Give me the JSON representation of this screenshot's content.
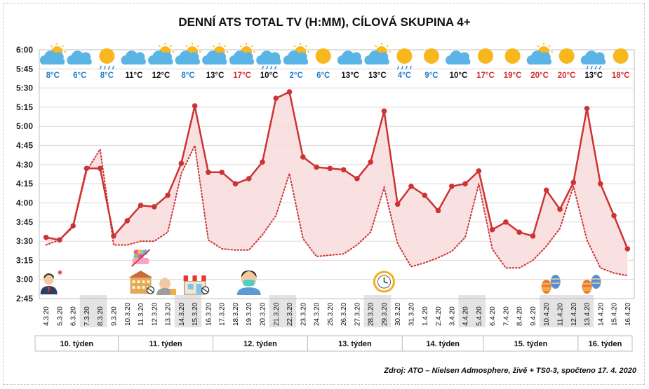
{
  "title": "DENNÍ ATS TOTAL TV (H:MM), CÍLOVÁ SKUPINA 4+",
  "source": "Zdroj: ATO – Nielsen Admosphere, živě + TS0-3, spočteno 17. 4. 2020",
  "colors": {
    "line2020": "#cc3333",
    "fill": "#f9dcdc",
    "shade": "#e3e3e3",
    "warm": "#d42a2a",
    "cool": "#1f7fd0",
    "neutral": "#111111"
  },
  "chart_data": {
    "type": "line",
    "title": "DENNÍ ATS TOTAL TV (H:MM), CÍLOVÁ SKUPINA 4+",
    "ylim": [
      "2:45",
      "6:00"
    ],
    "yticks": [
      "6:00",
      "5:45",
      "5:30",
      "5:15",
      "5:00",
      "4:45",
      "4:30",
      "4:15",
      "4:00",
      "3:45",
      "3:30",
      "3:15",
      "3:00",
      "2:45"
    ],
    "categories": [
      "4.3.20",
      "5.3.20",
      "6.3.20",
      "7.3.20",
      "8.3.20",
      "9.3.20",
      "10.3.20",
      "11.3.20",
      "12.3.20",
      "13.3.20",
      "14.3.20",
      "15.3.20",
      "16.3.20",
      "17.3.20",
      "18.3.20",
      "19.3.20",
      "20.3.20",
      "21.3.20",
      "22.3.20",
      "23.3.20",
      "24.3.20",
      "25.3.20",
      "26.3.20",
      "27.3.20",
      "28.3.20",
      "29.3.20",
      "30.3.20",
      "31.3.20",
      "1.4.20",
      "2.4.20",
      "3.4.20",
      "4.4.20",
      "5.4.20",
      "6.4.20",
      "7.4.20",
      "8.4.20",
      "9.4.20",
      "10.4.20",
      "11.4.20",
      "12.4.20",
      "13.4.20",
      "14.4.20",
      "15.4.20",
      "16.4.20"
    ],
    "weekend_categories": [
      "7.3.20",
      "8.3.20",
      "14.3.20",
      "15.3.20",
      "21.3.20",
      "22.3.20",
      "28.3.20",
      "29.3.20",
      "4.4.20",
      "5.4.20",
      "10.4.20",
      "11.4.20",
      "12.4.20",
      "13.4.20"
    ],
    "series": [
      {
        "style": "solid",
        "values": [
          "3:33",
          "3:31",
          "3:42",
          "4:27",
          "4:27",
          "3:34",
          "3:46",
          "3:58",
          "3:57",
          "4:06",
          "4:31",
          "5:16",
          "4:24",
          "4:24",
          "4:15",
          "4:19",
          "4:32",
          "5:22",
          "5:27",
          "4:36",
          "4:28",
          "4:27",
          "4:26",
          "4:19",
          "4:32",
          "5:12",
          "3:59",
          "4:13",
          "4:06",
          "3:54",
          "4:13",
          "4:15",
          "4:25",
          "3:39",
          "3:45",
          "3:37",
          "3:34",
          "4:10",
          "3:55",
          "4:16",
          "5:14",
          "4:15",
          "3:50",
          "3:24"
        ]
      },
      {
        "style": "dotted",
        "values": [
          "3:27",
          "3:31",
          "3:41",
          "4:25",
          "4:42",
          "3:27",
          "3:27",
          "3:30",
          "3:30",
          "3:37",
          "4:23",
          "4:45",
          "3:31",
          "3:24",
          "3:23",
          "3:23",
          "3:35",
          "3:50",
          "4:23",
          "3:32",
          "3:18",
          "3:19",
          "3:20",
          "3:27",
          "3:37",
          "4:12",
          "3:28",
          "3:10",
          "3:13",
          "3:17",
          "3:22",
          "3:33",
          "4:15",
          "3:24",
          "3:09",
          "3:09",
          "3:15",
          "3:26",
          "3:40",
          "4:13",
          "3:31",
          "3:09",
          "3:05",
          "3:03"
        ]
      }
    ],
    "weather": [
      {
        "icon": "sun-cloud-icon",
        "temp": "8°C",
        "tone": "cool"
      },
      {
        "icon": "cloud-icon",
        "temp": "6°C",
        "tone": "cool"
      },
      {
        "icon": "sun-rain-icon",
        "temp": "8°C",
        "tone": "cool"
      },
      {
        "icon": "cloud-icon",
        "temp": "11°C",
        "tone": "neutral"
      },
      {
        "icon": "sun-cloud-icon",
        "temp": "12°C",
        "tone": "neutral"
      },
      {
        "icon": "sun-cloud-icon",
        "temp": "8°C",
        "tone": "cool"
      },
      {
        "icon": "sun-cloud-icon",
        "temp": "13°C",
        "tone": "neutral"
      },
      {
        "icon": "sun-cloud-icon",
        "temp": "17°C",
        "tone": "warm"
      },
      {
        "icon": "cloud-rain-icon",
        "temp": "10°C",
        "tone": "neutral"
      },
      {
        "icon": "sun-cloud-icon",
        "temp": "2°C",
        "tone": "cool"
      },
      {
        "icon": "sun-icon",
        "temp": "6°C",
        "tone": "cool"
      },
      {
        "icon": "cloud-icon",
        "temp": "13°C",
        "tone": "neutral"
      },
      {
        "icon": "sun-cloud-icon",
        "temp": "13°C",
        "tone": "neutral"
      },
      {
        "icon": "sun-rain-icon",
        "temp": "4°C",
        "tone": "cool"
      },
      {
        "icon": "sun-icon",
        "temp": "9°C",
        "tone": "cool"
      },
      {
        "icon": "cloud-icon",
        "temp": "10°C",
        "tone": "neutral"
      },
      {
        "icon": "sun-icon",
        "temp": "17°C",
        "tone": "warm"
      },
      {
        "icon": "sun-icon",
        "temp": "19°C",
        "tone": "warm"
      },
      {
        "icon": "sun-cloud-icon",
        "temp": "20°C",
        "tone": "warm"
      },
      {
        "icon": "sun-icon",
        "temp": "20°C",
        "tone": "warm"
      },
      {
        "icon": "cloud-rain-icon",
        "temp": "13°C",
        "tone": "neutral"
      },
      {
        "icon": "sun-icon",
        "temp": "18°C",
        "tone": "warm"
      }
    ],
    "weeks": [
      "10. týden",
      "11. týden",
      "12. týden",
      "13. týden",
      "14. týden",
      "15. týden",
      "16. týden"
    ],
    "event_icons": [
      {
        "icon": "businessman-icon",
        "category": "4.3.20"
      },
      {
        "icon": "school-closed-icon",
        "category": "11.3.20"
      },
      {
        "icon": "senior-icon",
        "category": "13.3.20"
      },
      {
        "icon": "shop-closed-icon",
        "category": "15.3.20"
      },
      {
        "icon": "face-mask-icon",
        "category": "19.3.20"
      },
      {
        "icon": "clock-icon",
        "category": "29.3.20"
      },
      {
        "icon": "easter-eggs-icon",
        "category": "10.4.20"
      },
      {
        "icon": "easter-eggs-icon",
        "category": "13.4.20"
      }
    ]
  }
}
